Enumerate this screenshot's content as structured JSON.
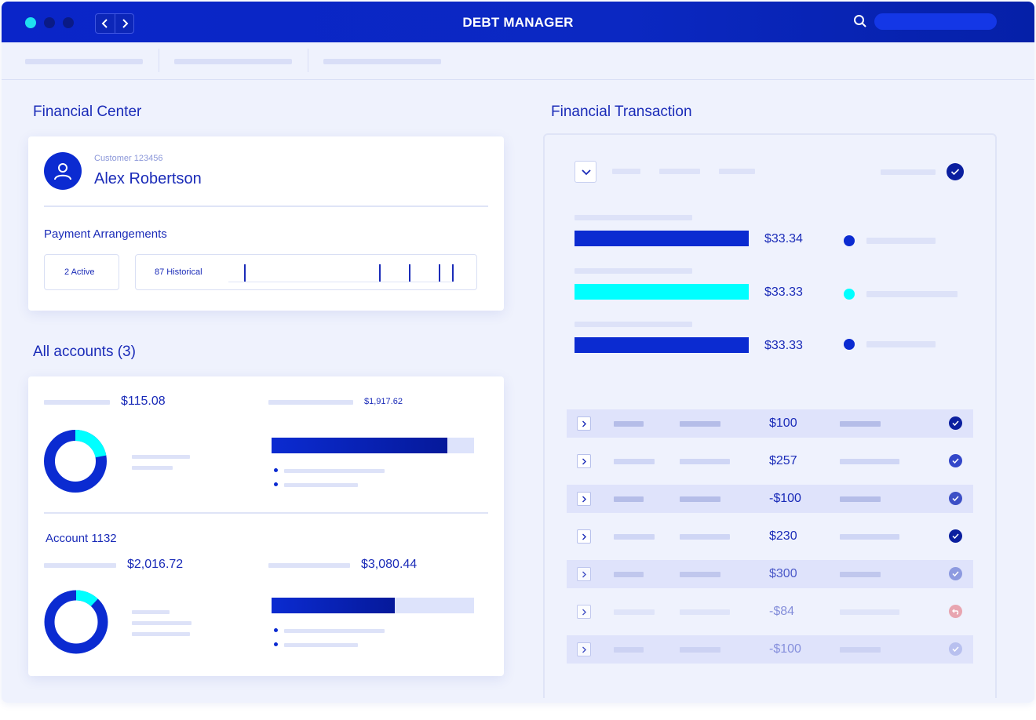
{
  "app": {
    "title": "DEBT MANAGER"
  },
  "colors": {
    "brand": "#0b2bd1",
    "accent": "#00ffff",
    "negative": "#e8a5b0",
    "background": "#eff2fd"
  },
  "financial_center": {
    "title": "Financial Center",
    "customer_id": "Customer 123456",
    "customer_name": "Alex Robertson",
    "payment_arrangements_label": "Payment Arrangements",
    "active_label": "2 Active",
    "historical_label": "87 Historical"
  },
  "accounts": {
    "title": "All accounts (3)",
    "summary": {
      "left_amount": "$115.08",
      "right_amount": "$1,917.62",
      "donut_accent_fraction": 0.22,
      "bar_fraction": 0.87
    },
    "account": {
      "label": "Account 1132",
      "left_amount": "$2,016.72",
      "right_amount": "$3,080.44",
      "donut_accent_fraction": 0.12,
      "bar_fraction": 0.61
    }
  },
  "transactions": {
    "title": "Financial Transaction",
    "splits": [
      {
        "amount": "$33.34",
        "color": "#0b2bd1"
      },
      {
        "amount": "$33.33",
        "color": "#00ffff"
      },
      {
        "amount": "$33.33",
        "color": "#0b2bd1"
      }
    ],
    "rows": [
      {
        "amount": "$100",
        "status": "paid"
      },
      {
        "amount": "$257",
        "status": "paid"
      },
      {
        "amount": "-$100",
        "status": "paid"
      },
      {
        "amount": "$230",
        "status": "paid"
      },
      {
        "amount": "$300",
        "status": "paid"
      },
      {
        "amount": "-$84",
        "status": "reversed"
      },
      {
        "amount": "-$100",
        "status": "paid"
      }
    ]
  },
  "icons": {
    "back": "chevron-left-icon",
    "forward": "chevron-right-icon",
    "search": "search-icon",
    "user": "user-icon",
    "expand": "chevron-down-icon",
    "row_expand": "chevron-right-icon",
    "paid": "check-circle-icon",
    "reversed": "undo-circle-icon"
  }
}
